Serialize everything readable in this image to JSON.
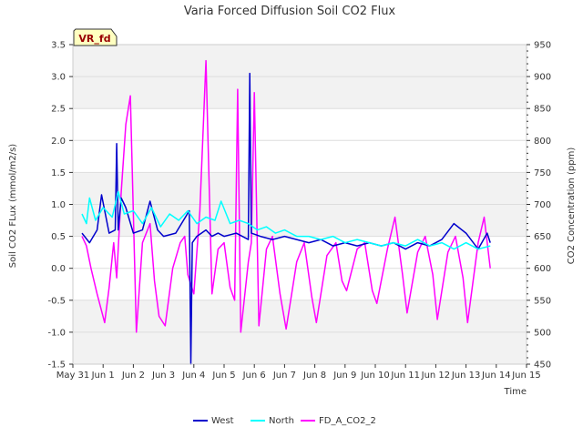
{
  "chart_data": {
    "type": "line",
    "title": "Varia Forced Diffusion Soil CO2 Flux",
    "xlabel": "Time",
    "ylabel": "Soil CO2 FLux (mmol/m2/s)",
    "y2label": "CO2 Concentration (ppm)",
    "badge": "VR_fd",
    "x_ticks": [
      "May 31",
      "Jun 1",
      "Jun 2",
      "Jun 3",
      "Jun 4",
      "Jun 5",
      "Jun 6",
      "Jun 7",
      "Jun 8",
      "Jun 9",
      "Jun 10",
      "Jun 11",
      "Jun 12",
      "Jun 13",
      "Jun 14",
      "Jun 15"
    ],
    "xlim": [
      0,
      15
    ],
    "ylim": [
      -1.5,
      3.5
    ],
    "y2lim": [
      450,
      950
    ],
    "y_ticks": [
      "-1.5",
      "-1.0",
      "-0.5",
      "0.0",
      "0.5",
      "1.0",
      "1.5",
      "2.0",
      "2.5",
      "3.0",
      "3.5"
    ],
    "y2_ticks": [
      "450",
      "500",
      "550",
      "600",
      "650",
      "700",
      "750",
      "800",
      "850",
      "900",
      "950"
    ],
    "grid": true,
    "legend_position": "bottom-center",
    "series": [
      {
        "name": "West",
        "color": "#0000cc",
        "axis": "left",
        "x": [
          0.3,
          0.55,
          0.8,
          0.95,
          1.2,
          1.4,
          1.45,
          1.5,
          1.6,
          1.75,
          2.0,
          2.3,
          2.55,
          2.8,
          3.0,
          3.4,
          3.85,
          3.9,
          3.95,
          4.1,
          4.4,
          4.6,
          4.8,
          5.0,
          5.4,
          5.8,
          5.85,
          5.9,
          6.2,
          6.6,
          7.0,
          7.4,
          7.8,
          8.2,
          8.6,
          9.0,
          9.4,
          9.8,
          10.2,
          10.6,
          11.0,
          11.4,
          11.8,
          12.2,
          12.6,
          13.0,
          13.4,
          13.7,
          13.8
        ],
        "y": [
          0.55,
          0.4,
          0.6,
          1.15,
          0.55,
          0.6,
          1.95,
          0.6,
          1.1,
          0.95,
          0.55,
          0.6,
          1.05,
          0.6,
          0.5,
          0.55,
          0.9,
          -1.5,
          0.4,
          0.5,
          0.6,
          0.5,
          0.55,
          0.5,
          0.55,
          0.45,
          3.05,
          0.55,
          0.5,
          0.45,
          0.5,
          0.45,
          0.4,
          0.45,
          0.35,
          0.4,
          0.35,
          0.4,
          0.35,
          0.4,
          0.3,
          0.4,
          0.35,
          0.45,
          0.7,
          0.55,
          0.3,
          0.55,
          0.4
        ]
      },
      {
        "name": "North",
        "color": "#00ffff",
        "axis": "left",
        "x": [
          0.3,
          0.45,
          0.55,
          0.75,
          1.0,
          1.3,
          1.5,
          1.7,
          2.0,
          2.3,
          2.6,
          2.9,
          3.2,
          3.5,
          3.8,
          4.1,
          4.4,
          4.7,
          4.9,
          5.2,
          5.5,
          5.8,
          6.1,
          6.4,
          6.7,
          7.0,
          7.4,
          7.8,
          8.2,
          8.6,
          9.0,
          9.4,
          9.8,
          10.2,
          10.6,
          11.0,
          11.4,
          11.8,
          12.2,
          12.6,
          13.0,
          13.4,
          13.8
        ],
        "y": [
          0.85,
          0.7,
          1.1,
          0.75,
          0.95,
          0.8,
          1.2,
          0.85,
          0.9,
          0.7,
          0.95,
          0.65,
          0.85,
          0.75,
          0.9,
          0.7,
          0.8,
          0.75,
          1.05,
          0.7,
          0.75,
          0.7,
          0.6,
          0.65,
          0.55,
          0.6,
          0.5,
          0.5,
          0.45,
          0.5,
          0.4,
          0.45,
          0.4,
          0.35,
          0.4,
          0.35,
          0.45,
          0.35,
          0.4,
          0.3,
          0.4,
          0.3,
          0.35
        ]
      },
      {
        "name": "FD_A_CO2_2",
        "color": "#ff00ff",
        "axis": "right",
        "x": [
          0.3,
          0.45,
          0.6,
          0.8,
          1.05,
          1.2,
          1.35,
          1.45,
          1.6,
          1.75,
          1.9,
          2.1,
          2.3,
          2.55,
          2.7,
          2.85,
          3.05,
          3.3,
          3.55,
          3.7,
          3.8,
          4.0,
          4.2,
          4.4,
          4.6,
          4.8,
          5.0,
          5.2,
          5.35,
          5.45,
          5.55,
          5.8,
          5.9,
          6.0,
          6.15,
          6.4,
          6.6,
          6.85,
          7.05,
          7.4,
          7.65,
          7.9,
          8.05,
          8.4,
          8.7,
          8.9,
          9.05,
          9.4,
          9.65,
          9.9,
          10.05,
          10.4,
          10.65,
          10.9,
          11.05,
          11.4,
          11.65,
          11.9,
          12.05,
          12.4,
          12.65,
          12.9,
          13.05,
          13.4,
          13.6,
          13.8
        ],
        "y": [
          650,
          635,
          600,
          560,
          515,
          570,
          640,
          585,
          720,
          825,
          870,
          500,
          640,
          670,
          580,
          525,
          510,
          600,
          640,
          650,
          590,
          560,
          690,
          925,
          560,
          630,
          640,
          570,
          550,
          880,
          500,
          610,
          640,
          875,
          510,
          630,
          650,
          560,
          505,
          610,
          640,
          555,
          515,
          620,
          640,
          580,
          565,
          630,
          640,
          565,
          545,
          630,
          680,
          590,
          530,
          625,
          650,
          590,
          520,
          625,
          650,
          585,
          515,
          640,
          680,
          600
        ]
      }
    ]
  }
}
